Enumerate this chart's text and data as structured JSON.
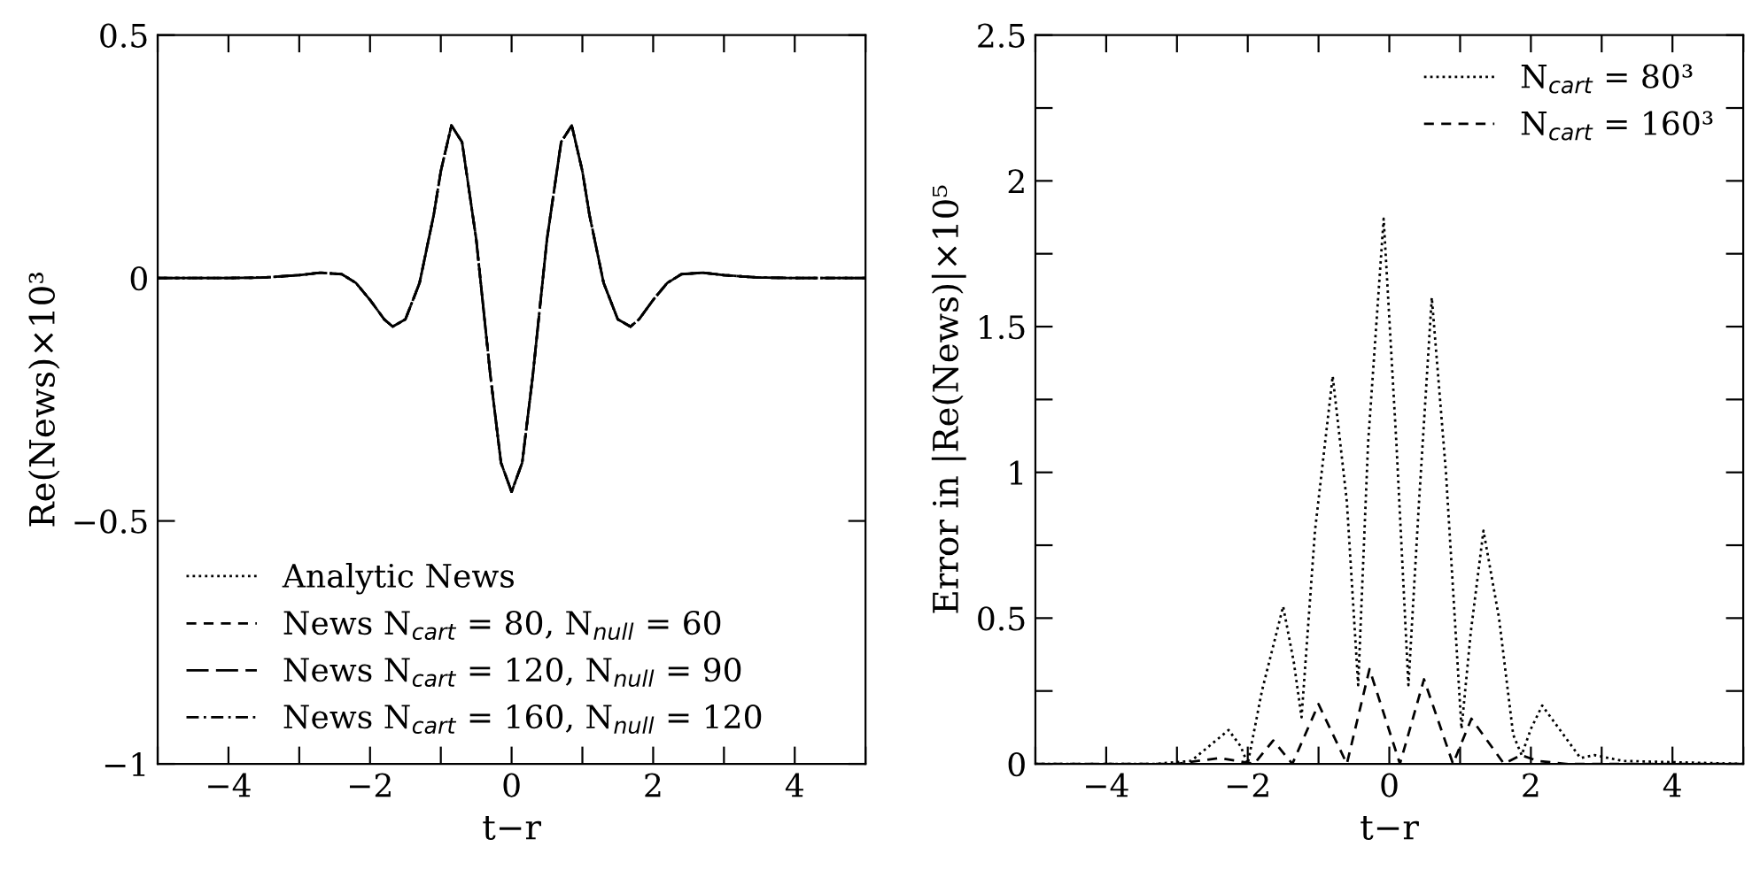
{
  "chart_data": [
    {
      "type": "line",
      "xlabel": "t−r",
      "ylabel": "Re(News)×10³",
      "xlim": [
        -5,
        5
      ],
      "ylim": [
        -1,
        0.5
      ],
      "xticks": [
        {
          "value": -5,
          "label": null
        },
        {
          "value": -4,
          "label": "−4"
        },
        {
          "value": -3,
          "label": null
        },
        {
          "value": -2,
          "label": "−2"
        },
        {
          "value": -1,
          "label": null
        },
        0,
        {
          "value": 1,
          "label": null
        },
        2,
        {
          "value": 3,
          "label": null
        },
        4,
        {
          "value": 5,
          "label": null
        }
      ],
      "yticks": [
        {
          "value": -1,
          "label": "−1"
        },
        {
          "value": -0.5,
          "label": "−0.5"
        },
        0,
        0.5
      ],
      "legend": "bottom left",
      "grid": false,
      "x": [
        -5,
        -4,
        -3.5,
        -3,
        -2.7,
        -2.4,
        -2.2,
        -2.0,
        -1.8,
        -1.68,
        -1.5,
        -1.3,
        -1.1,
        -1.0,
        -0.85,
        -0.7,
        -0.5,
        -0.3,
        -0.15,
        0,
        0.15,
        0.3,
        0.5,
        0.7,
        0.85,
        1.0,
        1.1,
        1.3,
        1.5,
        1.68,
        1.8,
        2.0,
        2.2,
        2.4,
        2.7,
        3,
        3.5,
        4,
        5
      ],
      "series": [
        {
          "name": "Analytic News",
          "color": "#000000",
          "line_style": "dotted",
          "values": [
            0,
            0,
            0.001,
            0.006,
            0.011,
            0.008,
            -0.01,
            -0.045,
            -0.085,
            -0.1,
            -0.085,
            -0.01,
            0.13,
            0.22,
            0.314,
            0.28,
            0.08,
            -0.2,
            -0.38,
            -0.44,
            -0.38,
            -0.2,
            0.08,
            0.28,
            0.314,
            0.22,
            0.13,
            -0.01,
            -0.085,
            -0.1,
            -0.085,
            -0.045,
            -0.01,
            0.008,
            0.011,
            0.006,
            0.001,
            0,
            0
          ]
        },
        {
          "name": "News N$_{cart}$ = 80, N$_{null}$ = 60",
          "color": "#000000",
          "line_style": "dashed",
          "values": [
            0,
            0,
            0.001,
            0.006,
            0.011,
            0.008,
            -0.01,
            -0.045,
            -0.085,
            -0.1,
            -0.085,
            -0.01,
            0.13,
            0.22,
            0.314,
            0.28,
            0.08,
            -0.2,
            -0.38,
            -0.44,
            -0.38,
            -0.2,
            0.08,
            0.28,
            0.314,
            0.22,
            0.13,
            -0.01,
            -0.085,
            -0.1,
            -0.085,
            -0.045,
            -0.01,
            0.008,
            0.011,
            0.006,
            0.001,
            0,
            0
          ]
        },
        {
          "name": "News N$_{cart}$ = 120, N$_{null}$ = 90",
          "color": "#000000",
          "line_style": "longdash",
          "values": [
            0,
            0,
            0.001,
            0.006,
            0.011,
            0.008,
            -0.01,
            -0.045,
            -0.085,
            -0.1,
            -0.085,
            -0.01,
            0.13,
            0.22,
            0.314,
            0.28,
            0.08,
            -0.2,
            -0.38,
            -0.44,
            -0.38,
            -0.2,
            0.08,
            0.28,
            0.314,
            0.22,
            0.13,
            -0.01,
            -0.085,
            -0.1,
            -0.085,
            -0.045,
            -0.01,
            0.008,
            0.011,
            0.006,
            0.001,
            0,
            0
          ]
        },
        {
          "name": "News N$_{cart}$ = 160, N$_{null}$ = 120",
          "color": "#000000",
          "line_style": "dashdot",
          "values": [
            0,
            0,
            0.001,
            0.006,
            0.011,
            0.008,
            -0.01,
            -0.045,
            -0.085,
            -0.1,
            -0.085,
            -0.01,
            0.13,
            0.22,
            0.314,
            0.28,
            0.08,
            -0.2,
            -0.38,
            -0.44,
            -0.38,
            -0.2,
            0.08,
            0.28,
            0.314,
            0.22,
            0.13,
            -0.01,
            -0.085,
            -0.1,
            -0.085,
            -0.045,
            -0.01,
            0.008,
            0.011,
            0.006,
            0.001,
            0,
            0
          ]
        }
      ]
    },
    {
      "type": "line",
      "xlabel": "t−r",
      "ylabel": "Error in |Re(News)|×10⁵",
      "xlim": [
        -5,
        5
      ],
      "ylim": [
        0,
        2.5
      ],
      "xticks": [
        {
          "value": -5,
          "label": null
        },
        {
          "value": -4,
          "label": "−4"
        },
        {
          "value": -3,
          "label": null
        },
        {
          "value": -2,
          "label": "−2"
        },
        {
          "value": -1,
          "label": null
        },
        0,
        {
          "value": 1,
          "label": null
        },
        2,
        {
          "value": 3,
          "label": null
        },
        4,
        {
          "value": 5,
          "label": null
        }
      ],
      "yticks": [
        0,
        {
          "value": 0.25,
          "label": null
        },
        0.5,
        {
          "value": 0.75,
          "label": null
        },
        1,
        {
          "value": 1.25,
          "label": null
        },
        1.5,
        {
          "value": 1.75,
          "label": null
        },
        2,
        {
          "value": 2.25,
          "label": null
        },
        2.5
      ],
      "legend": "top right",
      "grid": false,
      "series": [
        {
          "name": "N$_{cart}$ = 80³",
          "color": "#000000",
          "line_style": "dotted",
          "x": [
            -5,
            -3.3,
            -2.8,
            -2.5,
            -2.27,
            -2.1,
            -2.0,
            -1.8,
            -1.5,
            -1.35,
            -1.24,
            -1.05,
            -0.8,
            -0.6,
            -0.44,
            -0.3,
            -0.08,
            0.1,
            0.27,
            0.42,
            0.6,
            0.8,
            1.02,
            1.15,
            1.33,
            1.55,
            1.75,
            1.87,
            2.0,
            2.16,
            2.4,
            2.7,
            2.9,
            3.3,
            5
          ],
          "values": [
            0,
            0,
            0.01,
            0.07,
            0.116,
            0.06,
            0.0,
            0.25,
            0.54,
            0.35,
            0.16,
            0.8,
            1.33,
            0.9,
            0.27,
            1.1,
            1.87,
            1.1,
            0.27,
            0.9,
            1.6,
            1.0,
            0.12,
            0.45,
            0.8,
            0.5,
            0.1,
            0.03,
            0.12,
            0.2,
            0.12,
            0.02,
            0.03,
            0.01,
            0
          ]
        },
        {
          "name": "N$_{cart}$ = 160³",
          "color": "#000000",
          "line_style": "dashed",
          "x": [
            -5,
            -3.0,
            -2.4,
            -2.15,
            -1.91,
            -1.64,
            -1.37,
            -1.0,
            -0.6,
            -0.28,
            0.15,
            0.49,
            0.9,
            1.16,
            1.62,
            1.86,
            2.1,
            2.5,
            5
          ],
          "values": [
            0,
            0,
            0.02,
            0.01,
            0,
            0.08,
            0,
            0.205,
            0,
            0.325,
            0,
            0.29,
            0,
            0.155,
            0,
            0.03,
            0.01,
            0,
            0
          ]
        }
      ]
    }
  ]
}
